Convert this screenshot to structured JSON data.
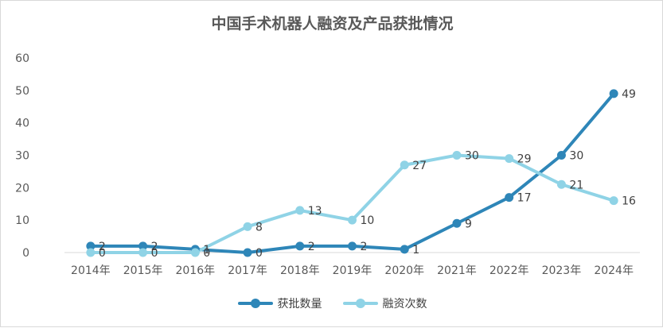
{
  "chart_data": {
    "type": "line",
    "title": "中国手术机器人融资及产品获批情况",
    "categories": [
      "2014年",
      "2015年",
      "2016年",
      "2017年",
      "2018年",
      "2019年",
      "2020年",
      "2021年",
      "2022年",
      "2023年",
      "2024年"
    ],
    "series": [
      {
        "name": "获批数量",
        "color": "#2e86b8",
        "values": [
          2,
          2,
          1,
          0,
          2,
          2,
          1,
          9,
          17,
          30,
          49
        ]
      },
      {
        "name": "融资次数",
        "color": "#8fd3e6",
        "values": [
          0,
          0,
          0,
          8,
          13,
          10,
          27,
          30,
          29,
          21,
          16
        ]
      }
    ],
    "yticks": [
      0,
      10,
      20,
      30,
      40,
      50,
      60
    ],
    "ylim": [
      0,
      60
    ],
    "xlabel": "",
    "ylabel": "",
    "grid": false,
    "data_labels": true,
    "legend_position": "bottom",
    "axis_color": "#d9d9d9",
    "text_color": "#595959"
  }
}
